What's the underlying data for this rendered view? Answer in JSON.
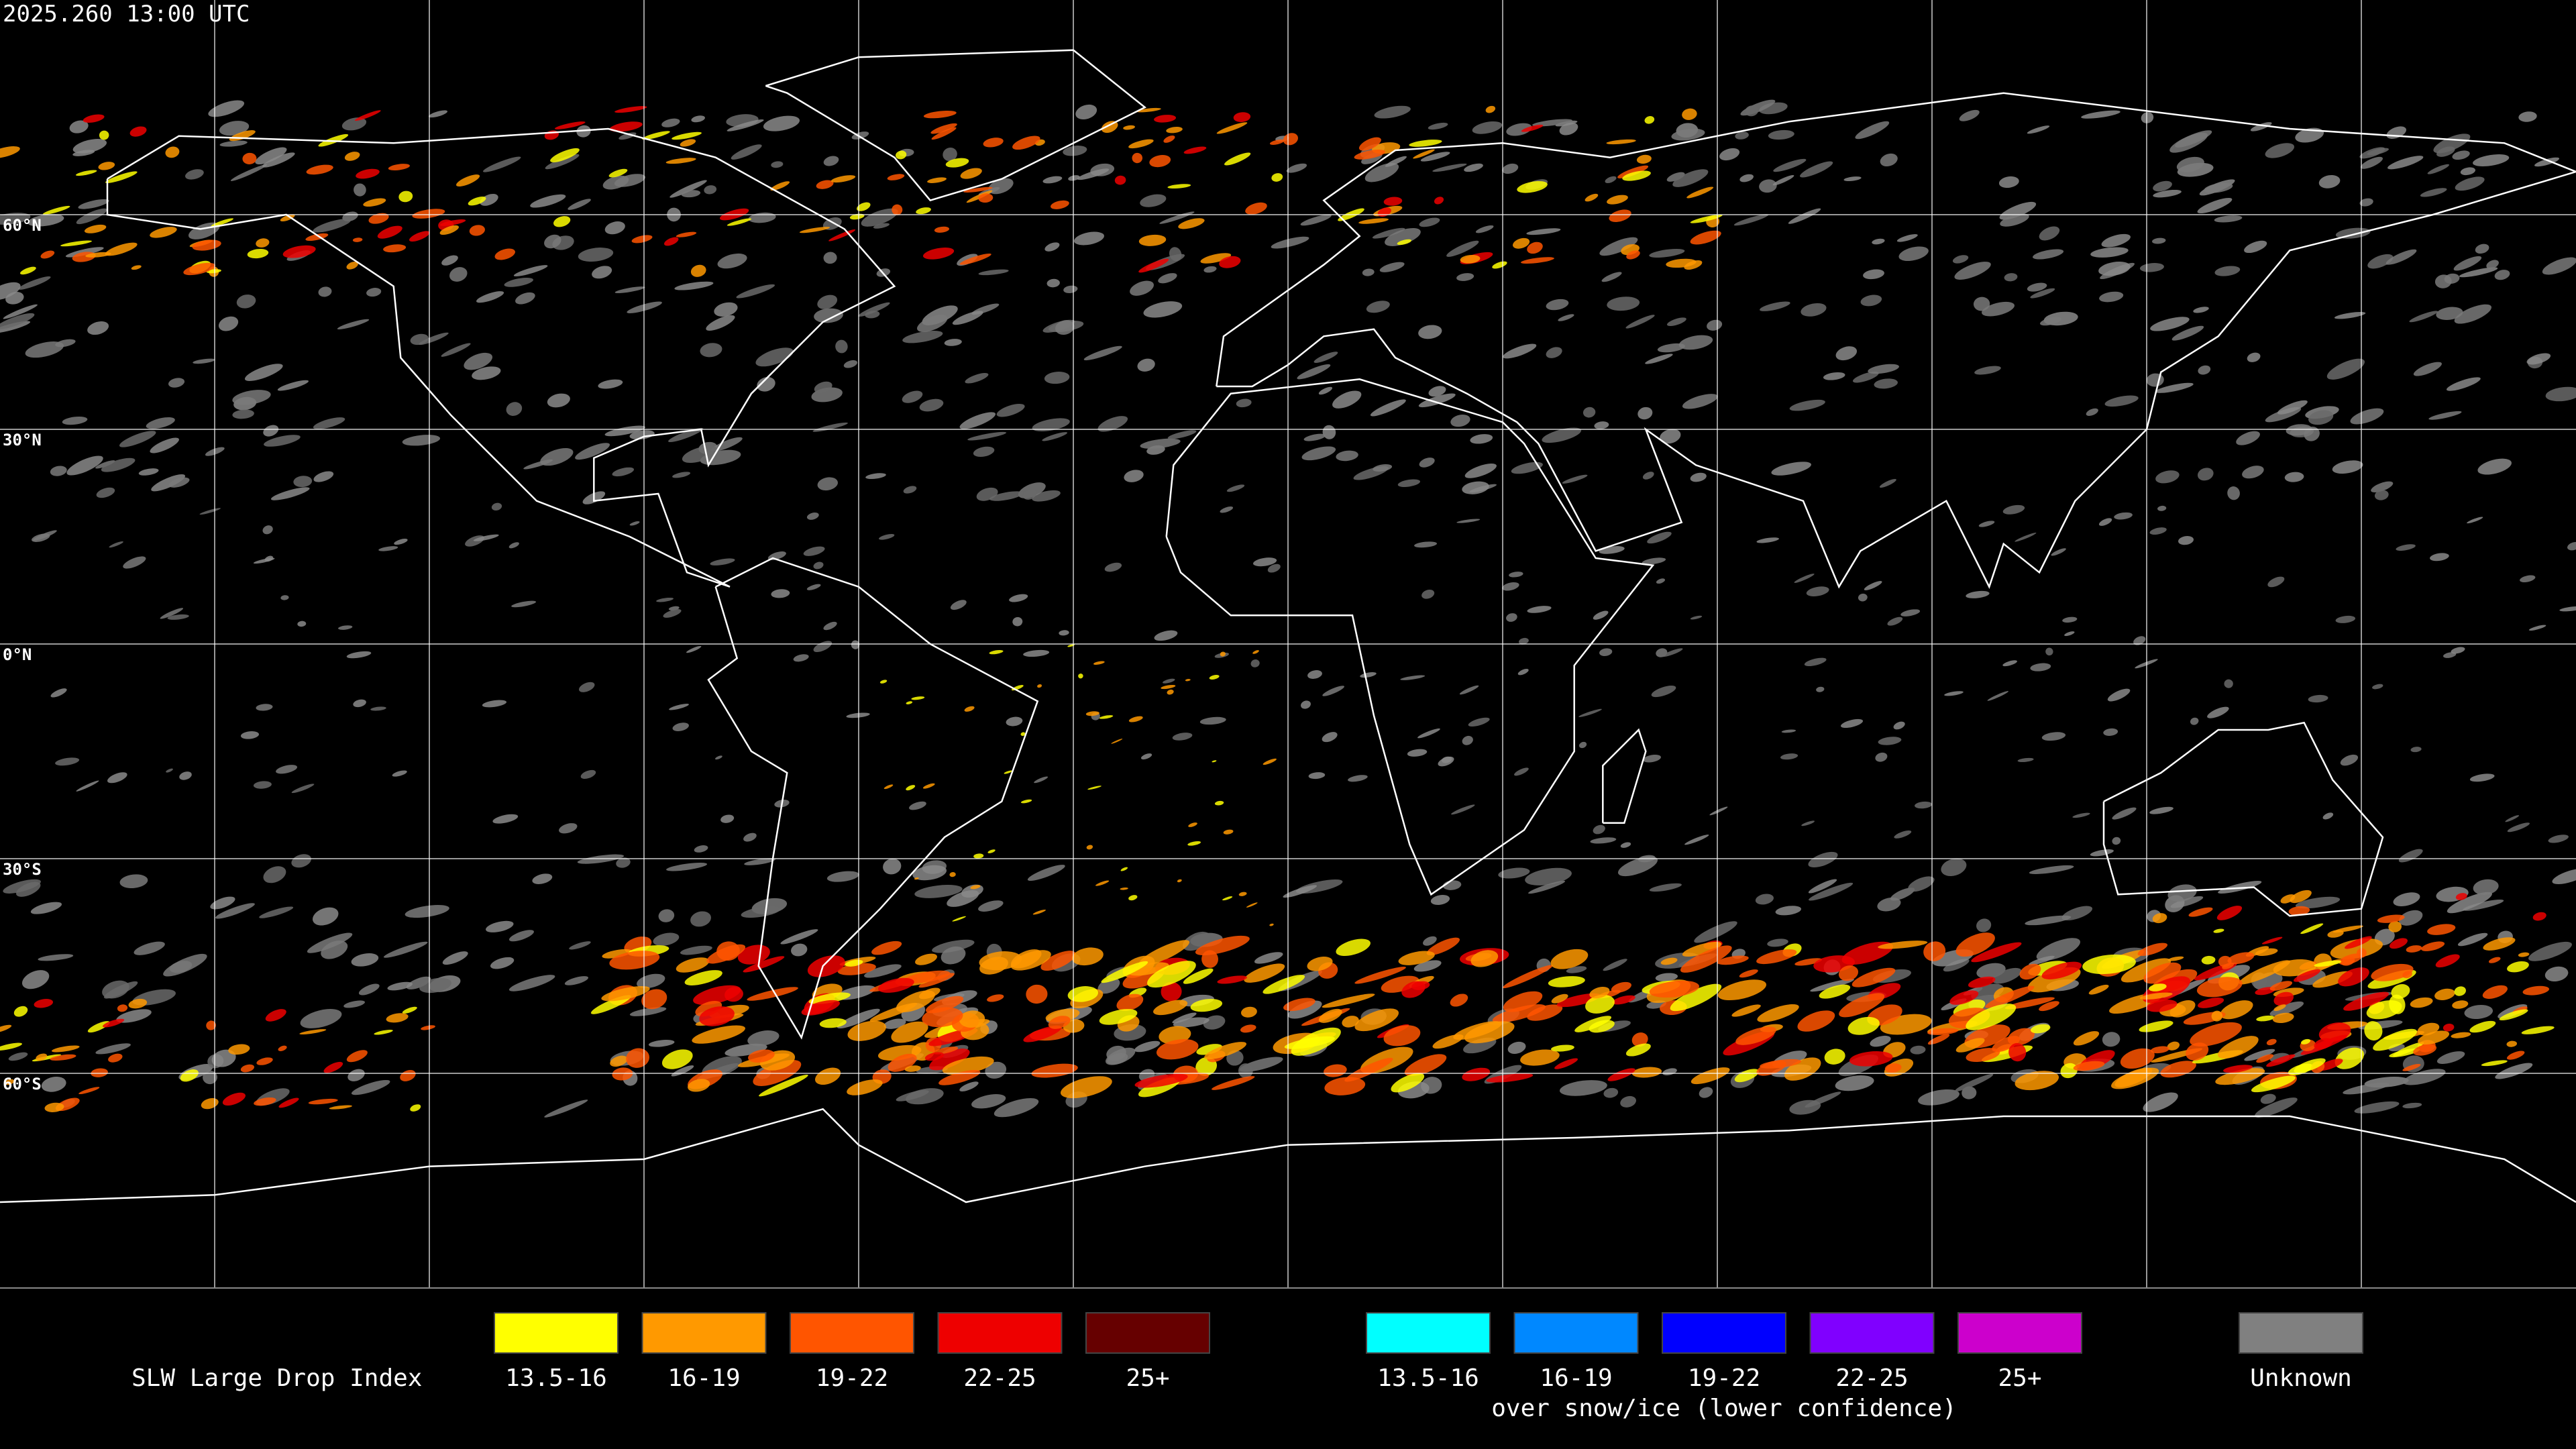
{
  "timestamp": "2025.260 13:00 UTC",
  "latitude_labels": [
    "60°N",
    "30°N",
    "0°N",
    "30°S",
    "60°S"
  ],
  "legend": {
    "title": "SLW Large Drop Index",
    "groups": [
      {
        "items": [
          {
            "label": "13.5-16",
            "color": "#ffff00"
          },
          {
            "label": "16-19",
            "color": "#ff9900"
          },
          {
            "label": "19-22",
            "color": "#ff5500"
          },
          {
            "label": "22-25",
            "color": "#ee0000"
          },
          {
            "label": "25+",
            "color": "#660000"
          }
        ]
      },
      {
        "caption": "over snow/ice (lower confidence)",
        "items": [
          {
            "label": "13.5-16",
            "color": "#00ffff"
          },
          {
            "label": "16-19",
            "color": "#0088ff"
          },
          {
            "label": "19-22",
            "color": "#0000ff"
          },
          {
            "label": "22-25",
            "color": "#8000ff"
          },
          {
            "label": "25+",
            "color": "#cc00cc"
          }
        ]
      }
    ],
    "unknown": {
      "label": "Unknown",
      "color": "#808080"
    }
  }
}
